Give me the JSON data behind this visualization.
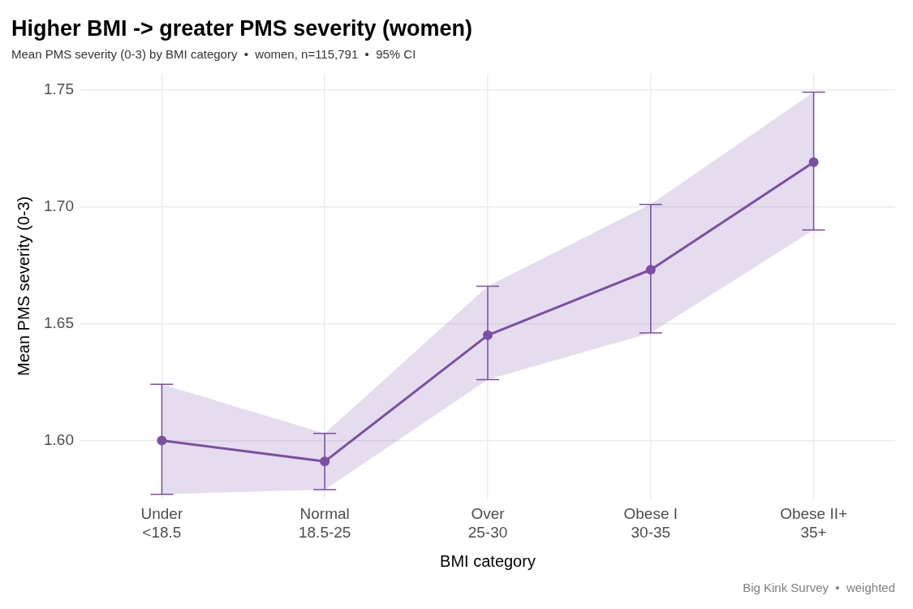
{
  "chart_data": {
    "type": "line",
    "title": "Higher BMI -> greater PMS severity (women)",
    "subtitle": "Mean PMS severity (0-3) by BMI category  •  women, n=115,791  •  95% CI",
    "xlabel": "BMI category",
    "ylabel": "Mean PMS severity (0-3)",
    "categories": [
      "Under\n<18.5",
      "Normal\n18.5-25",
      "Over\n25-30",
      "Obese I\n30-35",
      "Obese II+\n35+"
    ],
    "series": [
      {
        "color": "#7b4fa5",
        "values": [
          1.6,
          1.591,
          1.645,
          1.673,
          1.719
        ],
        "errors": [
          [
            1.577,
            1.624
          ],
          [
            1.579,
            1.603
          ],
          [
            1.626,
            1.666
          ],
          [
            1.646,
            1.701
          ],
          [
            1.69,
            1.749
          ]
        ],
        "lower": [
          1.577,
          1.579,
          1.626,
          1.646,
          1.69
        ],
        "upper": [
          1.624,
          1.603,
          1.666,
          1.701,
          1.749
        ]
      }
    ],
    "ylim": [
      1.575,
      1.757
    ],
    "yticks": [
      {
        "value": 1.6,
        "label": "1.60"
      },
      1.65,
      {
        "value": 1.7,
        "label": "1.70"
      },
      1.75
    ],
    "grid": true,
    "legend": false,
    "marker": "circle",
    "line_style": "solid",
    "annotations": [
      "Big Kink Survey  •  weighted"
    ]
  }
}
